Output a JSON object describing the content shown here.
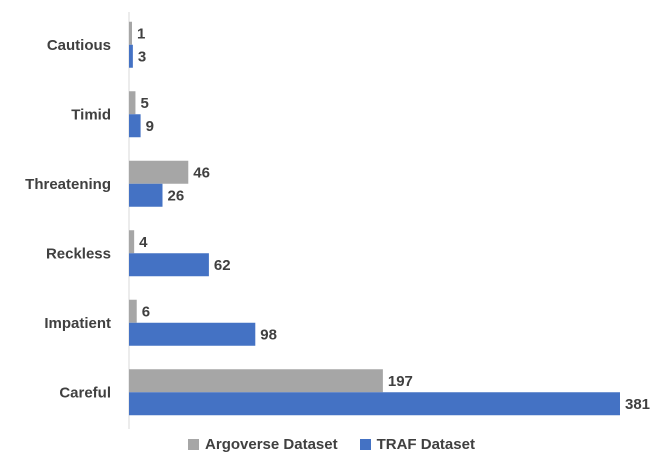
{
  "chart_data": {
    "type": "bar",
    "orientation": "horizontal",
    "categories": [
      "Cautious",
      "Timid",
      "Threatening",
      "Reckless",
      "Impatient",
      "Careful"
    ],
    "series": [
      {
        "name": "Argoverse Dataset",
        "values": [
          1,
          5,
          46,
          4,
          6,
          197
        ],
        "color": "#a6a6a6"
      },
      {
        "name": "TRAF Dataset",
        "values": [
          3,
          9,
          26,
          62,
          98,
          381
        ],
        "color": "#4472c4"
      }
    ],
    "xlim": [
      0,
      381
    ],
    "grid": false,
    "legend_position": "bottom"
  }
}
